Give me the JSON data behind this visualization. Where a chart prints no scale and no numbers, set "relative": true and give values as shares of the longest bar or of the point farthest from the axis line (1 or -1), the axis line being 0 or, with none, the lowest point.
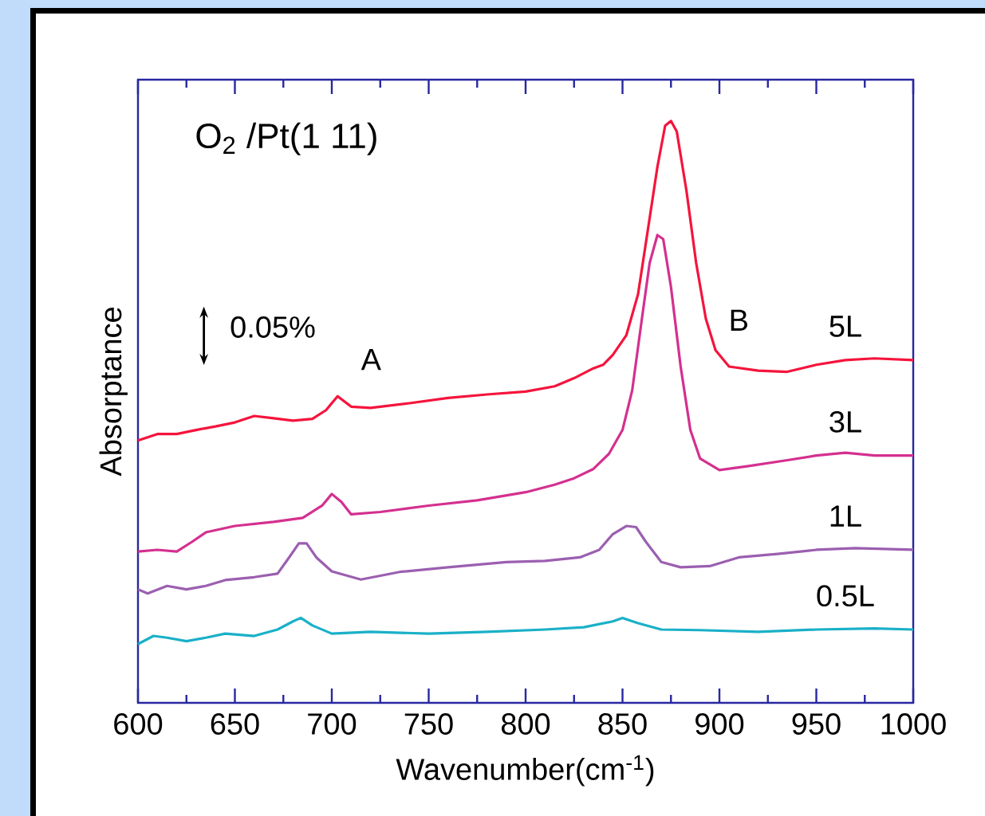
{
  "chart_data": {
    "type": "line",
    "relative": true,
    "title": "O$_{2}$ /Pt(1 11)",
    "xlabel": "Wavenumber(cm$^{-1}$)",
    "ylabel": "Absorptance",
    "xlim": [
      600,
      1000
    ],
    "xticks": [
      600,
      650,
      700,
      750,
      800,
      850,
      900,
      950,
      1000
    ],
    "annotations": [
      {
        "text": "A",
        "x": 703,
        "y": 0.527
      },
      {
        "text": "B",
        "x": 910,
        "y": 0.578
      },
      "0.05%"
    ],
    "series": [
      {
        "name": "5L",
        "color": "#f5143c",
        "x": [
          600,
          610,
          620,
          630,
          640,
          650,
          660,
          670,
          680,
          690,
          697,
          703,
          710,
          720,
          740,
          760,
          780,
          800,
          815,
          825,
          835,
          840,
          845,
          852,
          858,
          863,
          868,
          872,
          875,
          878,
          883,
          888,
          893,
          898,
          905,
          920,
          935,
          950,
          965,
          980,
          1000
        ],
        "values": [
          0.451,
          0.462,
          0.462,
          0.469,
          0.475,
          0.482,
          0.493,
          0.489,
          0.485,
          0.488,
          0.503,
          0.527,
          0.509,
          0.507,
          0.515,
          0.524,
          0.53,
          0.535,
          0.544,
          0.558,
          0.575,
          0.581,
          0.598,
          0.632,
          0.702,
          0.811,
          0.921,
          0.992,
          1,
          0.982,
          0.88,
          0.756,
          0.66,
          0.606,
          0.578,
          0.571,
          0.569,
          0.581,
          0.589,
          0.592,
          0.589
        ]
      },
      {
        "name": "3L",
        "color": "#d4308f",
        "x": [
          600,
          610,
          620,
          628,
          635,
          650,
          670,
          685,
          695,
          700,
          705,
          710,
          725,
          750,
          775,
          800,
          815,
          825,
          835,
          843,
          850,
          855,
          860,
          864,
          868,
          871,
          875,
          880,
          885,
          890,
          900,
          915,
          935,
          950,
          965,
          980,
          1000
        ],
        "values": [
          0.26,
          0.263,
          0.26,
          0.277,
          0.293,
          0.304,
          0.311,
          0.318,
          0.339,
          0.359,
          0.345,
          0.324,
          0.328,
          0.339,
          0.348,
          0.362,
          0.375,
          0.386,
          0.402,
          0.428,
          0.469,
          0.537,
          0.66,
          0.756,
          0.804,
          0.797,
          0.715,
          0.578,
          0.469,
          0.42,
          0.4,
          0.407,
          0.417,
          0.425,
          0.43,
          0.425,
          0.425
        ]
      },
      {
        "name": "1L",
        "color": "#9b5fb0",
        "x": [
          600,
          605,
          615,
          625,
          635,
          645,
          660,
          672,
          678,
          683,
          687,
          692,
          700,
          715,
          735,
          760,
          790,
          810,
          828,
          838,
          845,
          852,
          857,
          862,
          870,
          880,
          895,
          910,
          930,
          950,
          970,
          1000
        ],
        "values": [
          0.195,
          0.188,
          0.201,
          0.195,
          0.201,
          0.211,
          0.216,
          0.222,
          0.25,
          0.274,
          0.274,
          0.25,
          0.226,
          0.212,
          0.225,
          0.233,
          0.242,
          0.244,
          0.25,
          0.263,
          0.29,
          0.304,
          0.302,
          0.277,
          0.242,
          0.233,
          0.235,
          0.25,
          0.256,
          0.263,
          0.266,
          0.263
        ]
      },
      {
        "name": "0.5L",
        "color": "#1ab0c8",
        "x": [
          600,
          608,
          615,
          625,
          635,
          645,
          660,
          672,
          680,
          684,
          690,
          700,
          720,
          750,
          780,
          810,
          830,
          845,
          850,
          858,
          870,
          890,
          920,
          950,
          980,
          1000
        ],
        "values": [
          0.101,
          0.115,
          0.112,
          0.106,
          0.112,
          0.119,
          0.115,
          0.126,
          0.14,
          0.146,
          0.133,
          0.119,
          0.122,
          0.119,
          0.122,
          0.126,
          0.13,
          0.14,
          0.146,
          0.137,
          0.126,
          0.125,
          0.122,
          0.126,
          0.128,
          0.126
        ]
      }
    ]
  }
}
